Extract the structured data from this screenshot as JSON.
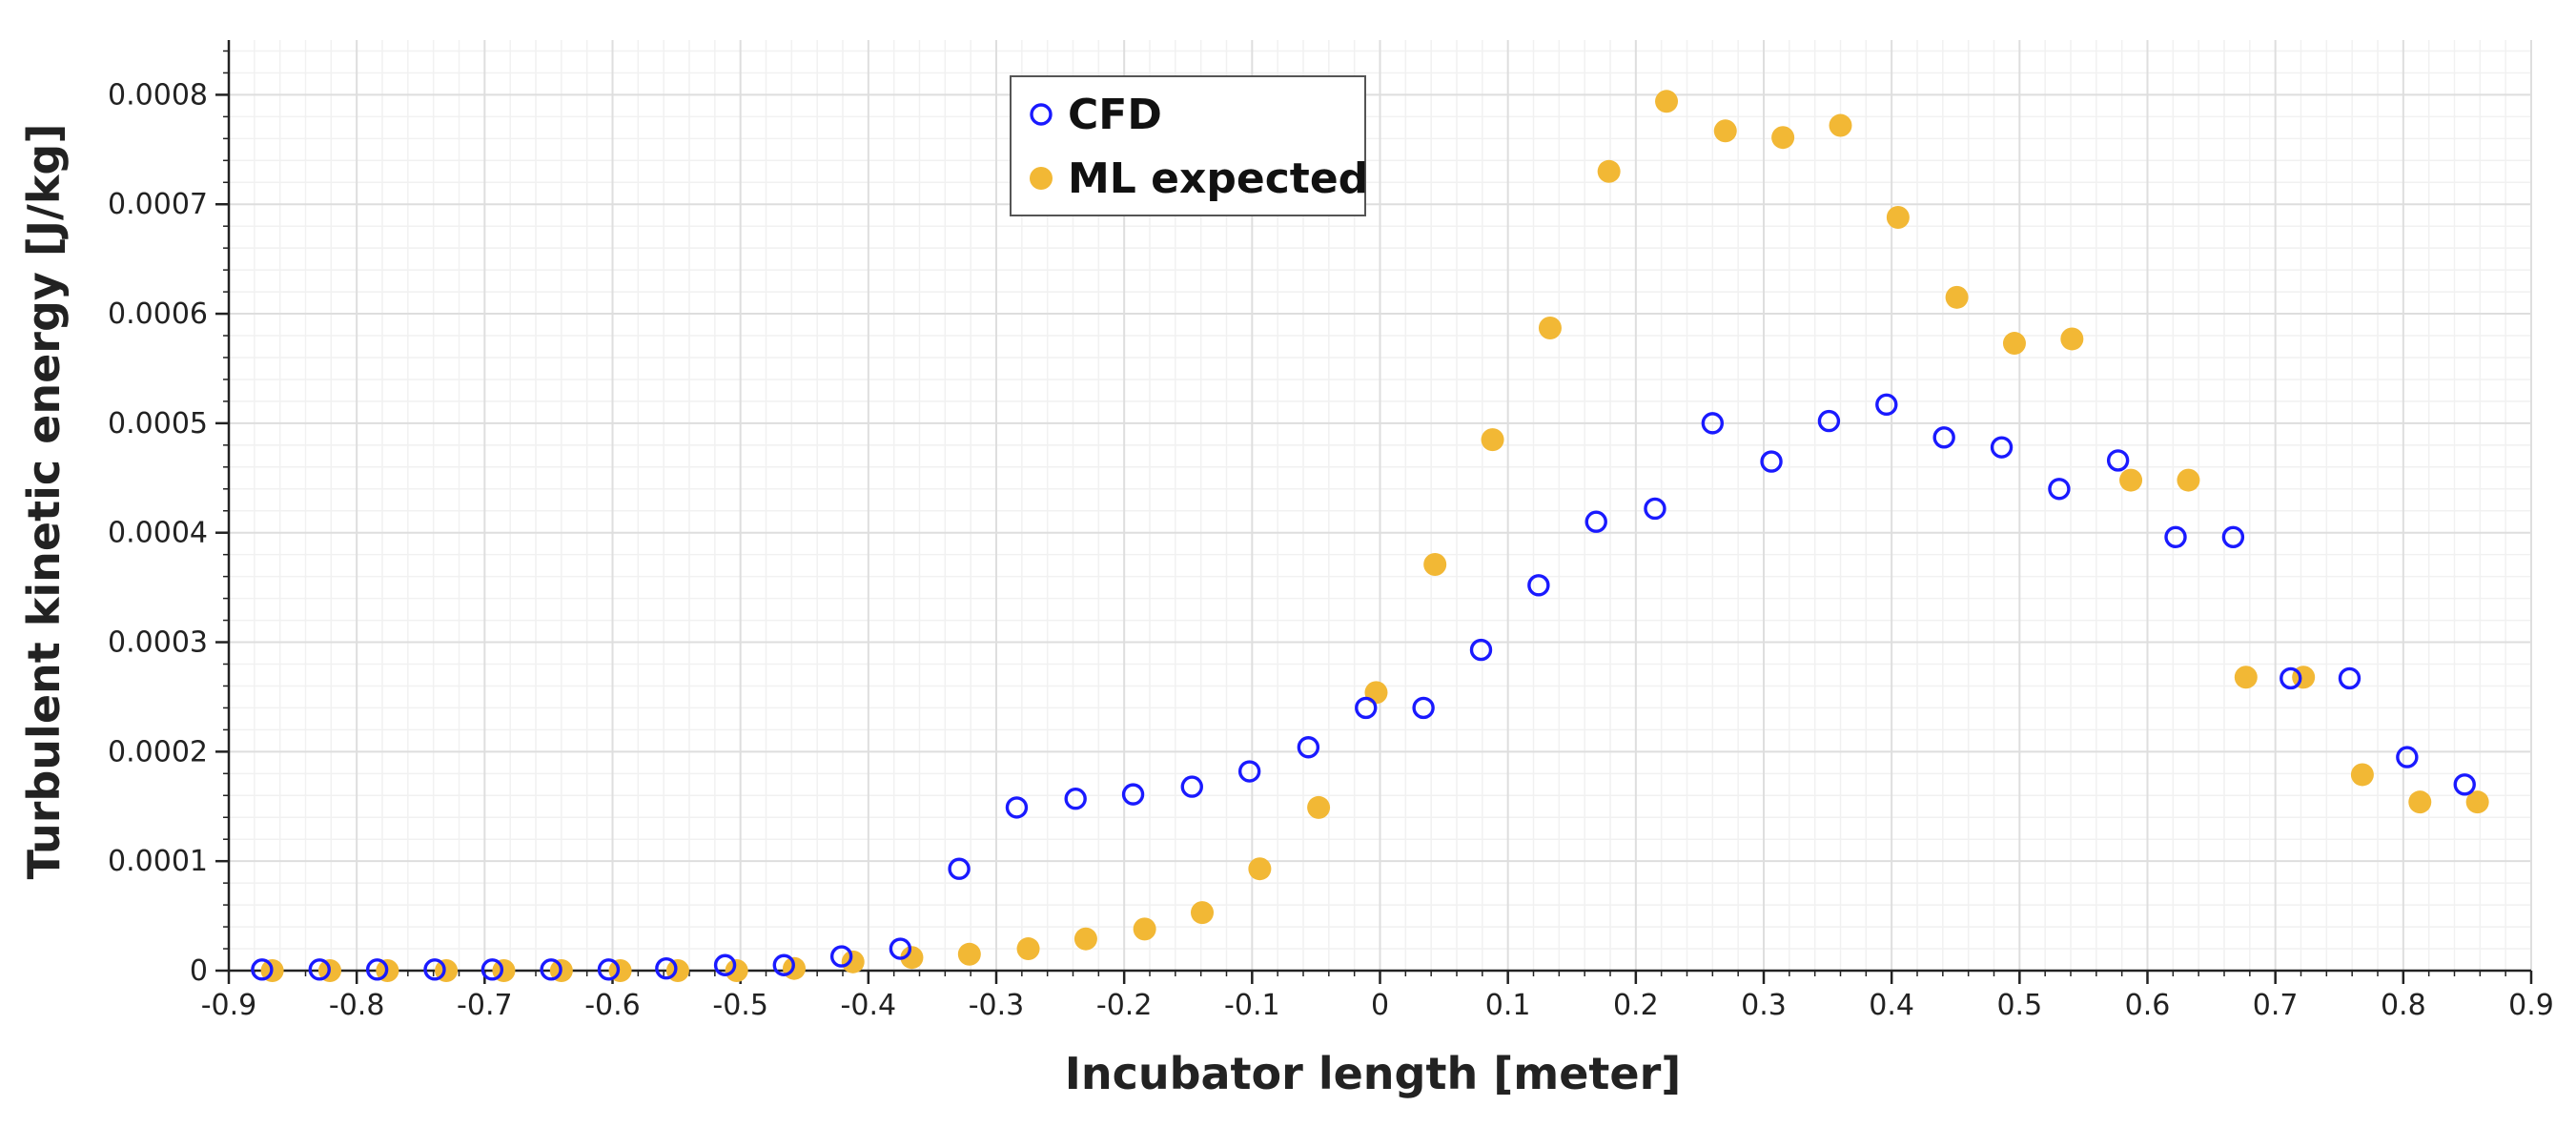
{
  "chart_data": {
    "type": "scatter",
    "title": "",
    "xlabel": "Incubator length [meter]",
    "ylabel": "Turbulent kinetic energy [J/kg]",
    "xlim": [
      -0.9,
      0.9
    ],
    "ylim": [
      0,
      0.00085
    ],
    "x_ticks": [
      -0.9,
      -0.8,
      -0.7,
      -0.6,
      -0.5,
      -0.4,
      -0.3,
      -0.2,
      -0.1,
      0,
      0.1,
      0.2,
      0.3,
      0.4,
      0.5,
      0.6,
      0.7,
      0.8,
      0.9
    ],
    "x_tick_labels": [
      "-0.9",
      "-0.8",
      "-0.7",
      "-0.6",
      "-0.5",
      "-0.4",
      "-0.3",
      "-0.2",
      "-0.1",
      "0",
      "0.1",
      "0.2",
      "0.3",
      "0.4",
      "0.5",
      "0.6",
      "0.7",
      "0.8",
      "0.9"
    ],
    "y_ticks": [
      0,
      0.0001,
      0.0002,
      0.0003,
      0.0004,
      0.0005,
      0.0006,
      0.0007,
      0.0008
    ],
    "y_tick_labels": [
      "0",
      "0.0001",
      "0.0002",
      "0.0003",
      "0.0004",
      "0.0005",
      "0.0006",
      "0.0007",
      "0.0008"
    ],
    "grid": true,
    "legend_position": "top-center",
    "series": [
      {
        "name": "CFD",
        "marker": "open-circle",
        "color": "#1a1aff",
        "x": [
          -0.874,
          -0.829,
          -0.784,
          -0.739,
          -0.694,
          -0.648,
          -0.603,
          -0.558,
          -0.512,
          -0.466,
          -0.421,
          -0.375,
          -0.329,
          -0.284,
          -0.238,
          -0.193,
          -0.147,
          -0.102,
          -0.056,
          -0.011,
          0.034,
          0.079,
          0.124,
          0.169,
          0.215,
          0.26,
          0.306,
          0.351,
          0.396,
          0.441,
          0.486,
          0.531,
          0.577,
          0.622,
          0.667,
          0.712,
          0.758,
          0.803,
          0.848
        ],
        "y": [
          1e-06,
          1e-06,
          1e-06,
          1e-06,
          1e-06,
          1e-06,
          1e-06,
          2e-06,
          5e-06,
          5e-06,
          1.3e-05,
          2e-05,
          9.3e-05,
          0.000149,
          0.000157,
          0.000161,
          0.000168,
          0.000182,
          0.000204,
          0.00024,
          0.00024,
          0.000293,
          0.000352,
          0.00041,
          0.000422,
          0.0005,
          0.000465,
          0.000502,
          0.000517,
          0.000487,
          0.000478,
          0.00044,
          0.000466,
          0.000396,
          0.000396,
          0.000267,
          0.000267,
          0.000195,
          0.00017
        ]
      },
      {
        "name": "ML expected",
        "marker": "filled-circle",
        "color": "#f2b835",
        "x": [
          -0.866,
          -0.821,
          -0.776,
          -0.73,
          -0.685,
          -0.64,
          -0.594,
          -0.549,
          -0.503,
          -0.458,
          -0.412,
          -0.366,
          -0.321,
          -0.275,
          -0.23,
          -0.184,
          -0.139,
          -0.094,
          -0.048,
          -0.003,
          0.043,
          0.088,
          0.133,
          0.179,
          0.224,
          0.27,
          0.315,
          0.36,
          0.405,
          0.451,
          0.496,
          0.541,
          0.587,
          0.632,
          0.677,
          0.722,
          0.768,
          0.813,
          0.858
        ],
        "y": [
          0.0,
          0.0,
          0.0,
          0.0,
          0.0,
          0.0,
          0.0,
          0.0,
          0.0,
          2e-06,
          8e-06,
          1.2e-05,
          1.5e-05,
          2e-05,
          2.9e-05,
          3.8e-05,
          5.3e-05,
          9.3e-05,
          0.000149,
          0.000254,
          0.000371,
          0.000485,
          0.000587,
          0.00073,
          0.000794,
          0.000767,
          0.000761,
          0.000772,
          0.000688,
          0.000615,
          0.000573,
          0.000577,
          0.000448,
          0.000448,
          0.000268,
          0.000268,
          0.000179,
          0.000154,
          0.000154
        ]
      }
    ]
  }
}
